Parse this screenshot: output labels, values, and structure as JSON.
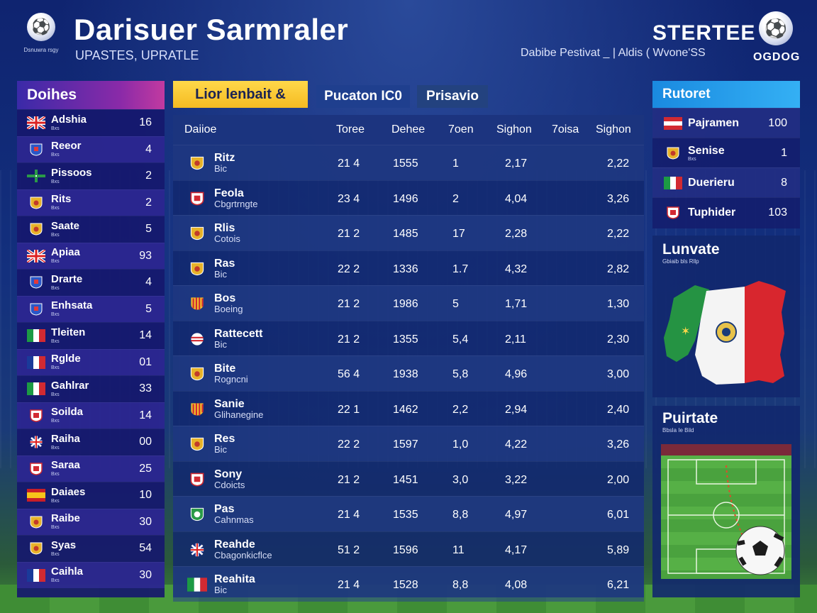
{
  "header": {
    "logo_caption": "Dsnuwra rsgy",
    "title": "Darisuer Sarmraler",
    "subtitle": "UPASTES, UPRATLE",
    "brand": "STERTEE",
    "brand_sub": "Dabibe Pestivat _ | Aldis ( Wvone'SS",
    "brand_code": "OGDOG"
  },
  "left_panel": {
    "title": "Doihes",
    "items": [
      {
        "name": "Adshia",
        "sub": "Bxs",
        "value": "16",
        "flag": "uk"
      },
      {
        "name": "Reeor",
        "sub": "Bxs",
        "value": "4",
        "flag": "crest-blue"
      },
      {
        "name": "Pissoos",
        "sub": "Bxs",
        "value": "2",
        "flag": "cross-green"
      },
      {
        "name": "Rits",
        "sub": "Bxs",
        "value": "2",
        "flag": "crest-gold"
      },
      {
        "name": "Saate",
        "sub": "Bxs",
        "value": "5",
        "flag": "crest-gold"
      },
      {
        "name": "Apiaa",
        "sub": "Bxs",
        "value": "93",
        "flag": "uk"
      },
      {
        "name": "Drarte",
        "sub": "Bxs",
        "value": "4",
        "flag": "crest-blue"
      },
      {
        "name": "Enhsata",
        "sub": "Bxs",
        "value": "5",
        "flag": "crest-blue"
      },
      {
        "name": "Tleiten",
        "sub": "Bxs",
        "value": "14",
        "flag": "italy"
      },
      {
        "name": "Rglde",
        "sub": "Bxs",
        "value": "01",
        "flag": "france"
      },
      {
        "name": "Gahlrar",
        "sub": "Bxs",
        "value": "33",
        "flag": "italy"
      },
      {
        "name": "Soilda",
        "sub": "Bxs",
        "value": "14",
        "flag": "crest-red"
      },
      {
        "name": "Raiha",
        "sub": "Bxs",
        "value": "00",
        "flag": "uk-round"
      },
      {
        "name": "Saraa",
        "sub": "Bxs",
        "value": "25",
        "flag": "crest-red"
      },
      {
        "name": "Daiaes",
        "sub": "Bxs",
        "value": "10",
        "flag": "spain"
      },
      {
        "name": "Raibe",
        "sub": "Bxs",
        "value": "30",
        "flag": "crest-gold"
      },
      {
        "name": "Syas",
        "sub": "Bxs",
        "value": "54",
        "flag": "crest-gold"
      },
      {
        "name": "Caihla",
        "sub": "Bxs",
        "value": "30",
        "flag": "france"
      }
    ]
  },
  "tabs": [
    {
      "label": "Lior lenbait &"
    },
    {
      "label": "Pucaton IC0"
    },
    {
      "label": "Prisavio"
    }
  ],
  "table": {
    "columns": [
      "Daiioe",
      "Toree",
      "Dehee",
      "7oen",
      "Sighon",
      "7oisa",
      "Sighon"
    ],
    "rows": [
      {
        "team": "Ritz",
        "sub": "Bic",
        "crest": "crest-gold",
        "c1": "21 4",
        "c2": "1555",
        "c3": "1",
        "c4": "2,17",
        "c5": "2,22"
      },
      {
        "team": "Feola",
        "sub": "Cbgrtrngte",
        "crest": "crest-red",
        "c1": "23 4",
        "c2": "1496",
        "c3": "2",
        "c4": "4,04",
        "c5": "3,26"
      },
      {
        "team": "Rlis",
        "sub": "Cotois",
        "crest": "crest-gold",
        "c1": "21 2",
        "c2": "1485",
        "c3": "17",
        "c4": "2,28",
        "c5": "2,22"
      },
      {
        "team": "Ras",
        "sub": "Bic",
        "crest": "crest-gold",
        "c1": "22 2",
        "c2": "1336",
        "c3": "1.7",
        "c4": "4,32",
        "c5": "2,82"
      },
      {
        "team": "Bos",
        "sub": "Boeing",
        "crest": "crest-stripe",
        "c1": "21 2",
        "c2": "1986",
        "c3": "5",
        "c4": "1,71",
        "c5": "1,30"
      },
      {
        "team": "Rattecett",
        "sub": "Bic",
        "crest": "crest-round",
        "c1": "21 2",
        "c2": "1355",
        "c3": "5,4",
        "c4": "2,11",
        "c5": "2,30"
      },
      {
        "team": "Bite",
        "sub": "Rogncni",
        "crest": "crest-gold",
        "c1": "56 4",
        "c2": "1938",
        "c3": "5,8",
        "c4": "4,96",
        "c5": "3,00"
      },
      {
        "team": "Sanie",
        "sub": "Glihanegine",
        "crest": "crest-stripe",
        "c1": "22 1",
        "c2": "1462",
        "c3": "2,2",
        "c4": "2,94",
        "c5": "2,40"
      },
      {
        "team": "Res",
        "sub": "Bic",
        "crest": "crest-gold",
        "c1": "22 2",
        "c2": "1597",
        "c3": "1,0",
        "c4": "4,22",
        "c5": "3,26"
      },
      {
        "team": "Sony",
        "sub": "Cdoicts",
        "crest": "crest-red",
        "c1": "21 2",
        "c2": "1451",
        "c3": "3,0",
        "c4": "3,22",
        "c5": "2,00"
      },
      {
        "team": "Pas",
        "sub": "Cahnmas",
        "crest": "crest-green",
        "c1": "21 4",
        "c2": "1535",
        "c3": "8,8",
        "c4": "4,97",
        "c5": "6,01"
      },
      {
        "team": "Reahde",
        "sub": "Cbagonkicflce",
        "crest": "uk-round",
        "c1": "51 2",
        "c2": "1596",
        "c3": "11",
        "c4": "4,17",
        "c5": "5,89"
      },
      {
        "team": "Reahita",
        "sub": "Bic",
        "crest": "italy",
        "c1": "21 4",
        "c2": "1528",
        "c3": "8,8",
        "c4": "4,08",
        "c5": "6,21"
      }
    ]
  },
  "right_panel": {
    "title": "Rutoret",
    "items": [
      {
        "name": "Pajramen",
        "sub": "",
        "value": "100",
        "flag": "austria"
      },
      {
        "name": "Senise",
        "sub": "Bxs",
        "value": "1",
        "flag": "crest-gold"
      },
      {
        "name": "Duerieru",
        "sub": "",
        "value": "8",
        "flag": "italy"
      },
      {
        "name": "Tuphider",
        "sub": "",
        "value": "103",
        "flag": "crest-red"
      }
    ]
  },
  "map_panel": {
    "title": "Lunvate",
    "sub": "Gbiaib bls Rllp"
  },
  "pitch_panel": {
    "title": "Puirtate",
    "sub": "Bbsla Ie Bild"
  }
}
